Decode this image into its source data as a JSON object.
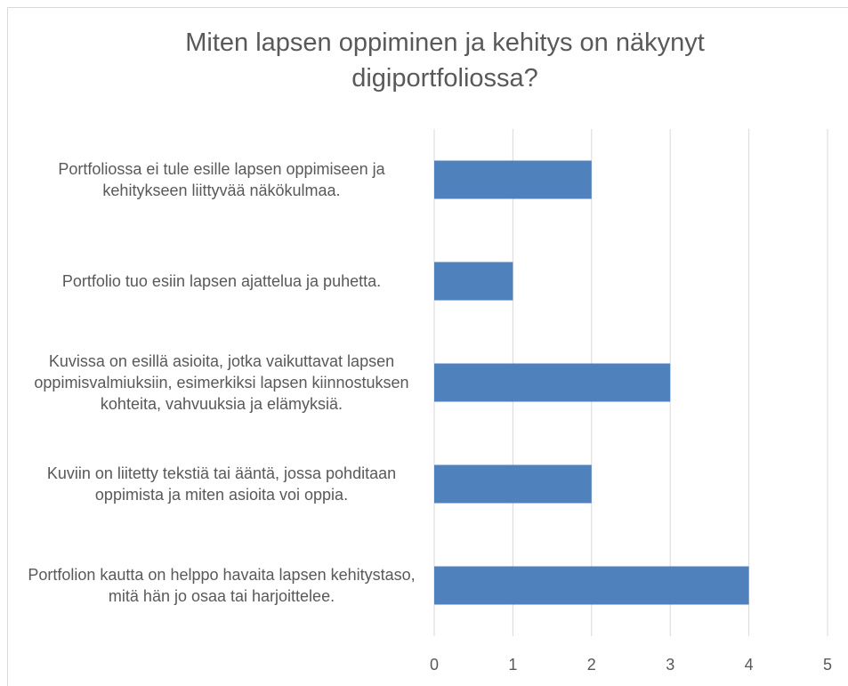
{
  "chart_data": {
    "type": "bar",
    "orientation": "horizontal",
    "title": "Miten lapsen oppiminen ja kehitys on näkynyt digiportfoliossa?",
    "categories": [
      "Portfoliossa ei tule esille lapsen oppimiseen ja kehitykseen liittyvää näkökulmaa.",
      "Portfolio tuo esiin lapsen ajattelua ja puhetta.",
      "Kuvissa on esillä asioita, jotka vaikuttavat lapsen oppimisvalmiuksiin, esimerkiksi lapsen kiinnostuksen kohteita, vahvuuksia ja elämyksiä.",
      "Kuviin on liitetty tekstiä tai ääntä, jossa pohditaan oppimista ja miten asioita voi oppia.",
      "Portfolion kautta on helppo havaita lapsen kehitystaso, mitä hän jo osaa tai harjoittelee."
    ],
    "values": [
      2,
      1,
      3,
      2,
      4
    ],
    "color": "#4f81bd",
    "xlim": [
      0,
      5
    ],
    "xticks": [
      0,
      1,
      2,
      3,
      4,
      5
    ],
    "grid": true
  }
}
